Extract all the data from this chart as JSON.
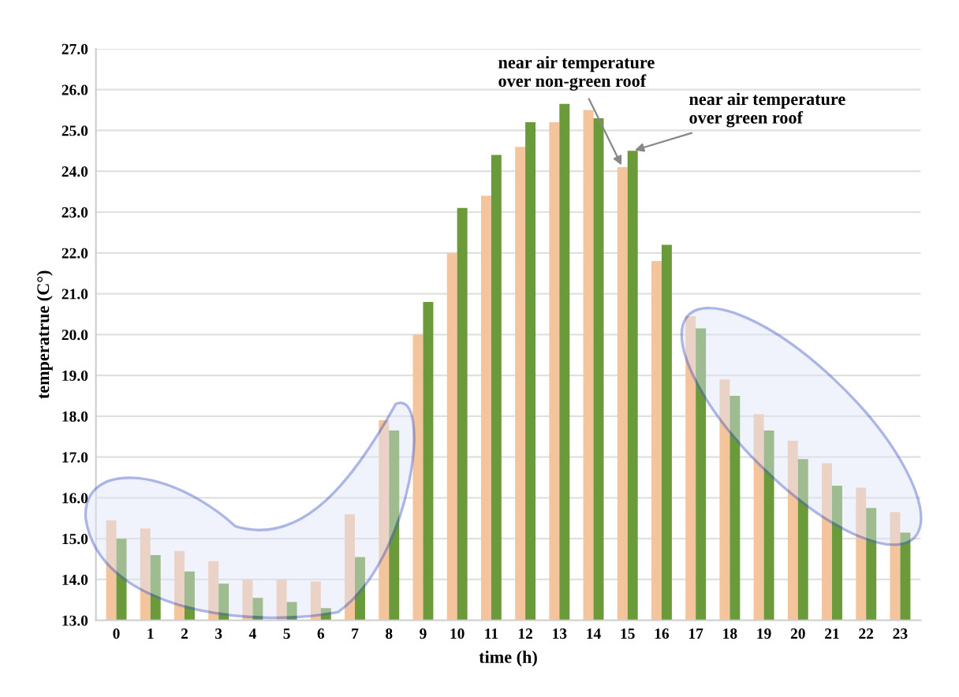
{
  "chart_data": {
    "type": "bar",
    "xlabel": "time (h)",
    "ylabel": "temperatrue (C°)",
    "categories": [
      "0",
      "1",
      "2",
      "3",
      "4",
      "5",
      "6",
      "7",
      "8",
      "9",
      "10",
      "11",
      "12",
      "13",
      "14",
      "15",
      "16",
      "17",
      "18",
      "19",
      "20",
      "21",
      "22",
      "23"
    ],
    "series": [
      {
        "color": "#f4c59c",
        "values": [
          15.45,
          15.25,
          14.7,
          14.45,
          14.0,
          14.0,
          13.95,
          15.6,
          17.9,
          20.0,
          22.0,
          23.4,
          24.6,
          25.2,
          25.5,
          24.1,
          21.8,
          20.45,
          18.9,
          18.05,
          17.4,
          16.85,
          16.25,
          15.65
        ]
      },
      {
        "color": "#6b9a3a",
        "values": [
          15.0,
          14.6,
          14.2,
          13.9,
          13.55,
          13.45,
          13.3,
          14.55,
          17.65,
          20.8,
          23.1,
          24.4,
          25.2,
          25.65,
          25.3,
          24.5,
          22.2,
          20.15,
          18.5,
          17.65,
          16.95,
          16.3,
          15.75,
          15.15
        ]
      }
    ],
    "ylim": [
      13,
      27
    ],
    "yticks": [
      {
        "value": 13,
        "label": "13.0"
      },
      {
        "value": 14,
        "label": "14.0"
      },
      {
        "value": 15,
        "label": "15.0"
      },
      {
        "value": 16,
        "label": "16.0"
      },
      {
        "value": 17,
        "label": "17.0"
      },
      {
        "value": 18,
        "label": "18.0"
      },
      {
        "value": 19,
        "label": "19.0"
      },
      {
        "value": 20,
        "label": "20.0"
      },
      {
        "value": 21,
        "label": "21.0"
      },
      {
        "value": 22,
        "label": "22.0"
      },
      {
        "value": 23,
        "label": "23.0"
      },
      {
        "value": 24,
        "label": "24.0"
      },
      {
        "value": 25,
        "label": "25.0"
      },
      {
        "value": 26,
        "label": "26.0"
      },
      {
        "value": 27,
        "label": "27.0"
      }
    ],
    "grid": "y",
    "annotations": [
      {
        "text": "near air temperature\nover non-green roof",
        "x": "15",
        "y": 24.1
      },
      {
        "text": "near air temperature\nover green roof",
        "x": "15",
        "y": 24.5
      }
    ]
  }
}
